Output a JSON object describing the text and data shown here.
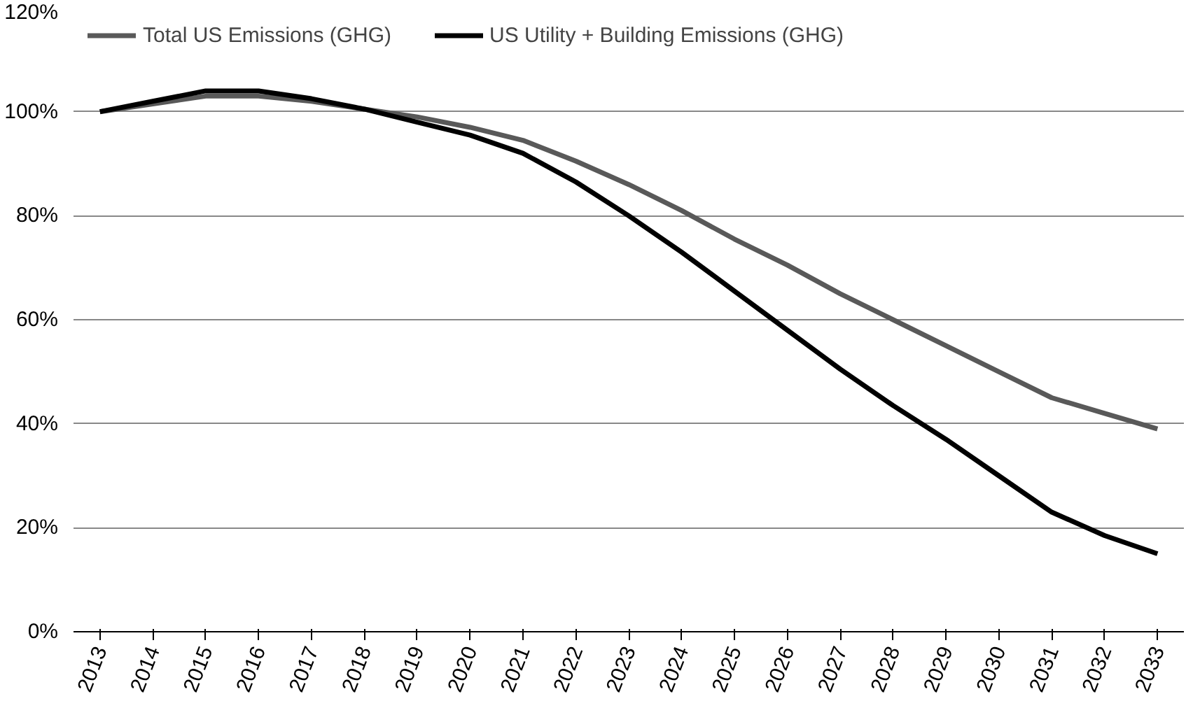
{
  "chart_data": {
    "type": "line",
    "categories": [
      "2013",
      "2014",
      "2015",
      "2016",
      "2017",
      "2018",
      "2019",
      "2020",
      "2021",
      "2022",
      "2023",
      "2024",
      "2025",
      "2026",
      "2027",
      "2028",
      "2029",
      "2030",
      "2031",
      "2032",
      "2033"
    ],
    "series": [
      {
        "name": "Total US Emissions (GHG)",
        "color": "#595959",
        "values": [
          100,
          101.5,
          103,
          103,
          102,
          100.5,
          99,
          97,
          94.5,
          90.5,
          86,
          81,
          75.5,
          70.5,
          65,
          60,
          55,
          50,
          45,
          42,
          39
        ]
      },
      {
        "name": "US Utility + Building Emissions (GHG)",
        "color": "#000000",
        "values": [
          100,
          102,
          104,
          104,
          102.5,
          100.5,
          98,
          95.5,
          92,
          86.5,
          80,
          73,
          65.5,
          58,
          50.5,
          43.5,
          37,
          30,
          23,
          18.5,
          15
        ]
      }
    ],
    "ylim": [
      0,
      120
    ],
    "yticks": [
      {
        "value": 0,
        "label": "0%"
      },
      {
        "value": 20,
        "label": "20%"
      },
      {
        "value": 40,
        "label": "40%"
      },
      {
        "value": 60,
        "label": "60%"
      },
      {
        "value": 80,
        "label": "80%"
      },
      {
        "value": 100,
        "label": "100%"
      },
      {
        "value": 120,
        "label": "120%"
      }
    ],
    "grid": "y",
    "legend": "top",
    "marker": "none",
    "line_style": "solid"
  }
}
